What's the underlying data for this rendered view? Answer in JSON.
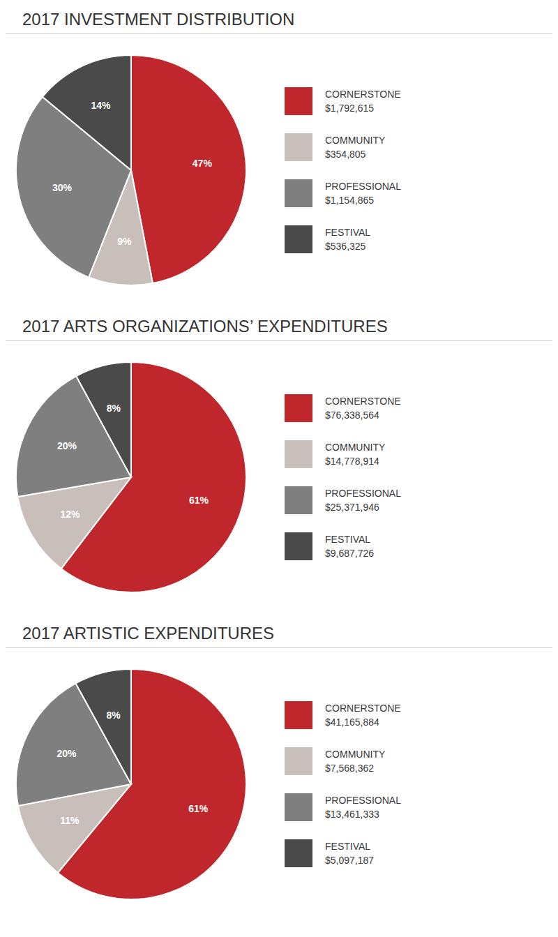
{
  "chart_data": [
    {
      "type": "pie",
      "title": "2017 INVESTMENT DISTRIBUTION",
      "categories": [
        "CORNERSTONE",
        "COMMUNITY",
        "PROFESSIONAL",
        "FESTIVAL"
      ],
      "values": [
        47,
        9,
        30,
        14
      ],
      "value_labels": [
        "47%",
        "9%",
        "30%",
        "14%"
      ],
      "data_labels": true,
      "colors": [
        "#c0272d",
        "#c8bfbb",
        "#7f7f7f",
        "#4a4a4a"
      ],
      "legend_values": [
        "$1,792,615",
        "$354,805",
        "$1,154,865",
        "$536,325"
      ]
    },
    {
      "type": "pie",
      "title": "2017 ARTS ORGANIZATIONS’ EXPENDITURES",
      "categories": [
        "CORNERSTONE",
        "COMMUNITY",
        "PROFESSIONAL",
        "FESTIVAL"
      ],
      "values": [
        61,
        12,
        20,
        8
      ],
      "value_labels": [
        "61%",
        "12%",
        "20%",
        "8%"
      ],
      "data_labels": true,
      "colors": [
        "#c0272d",
        "#c8bfbb",
        "#7f7f7f",
        "#4a4a4a"
      ],
      "legend_values": [
        "$76,338,564",
        "$14,778,914",
        "$25,371,946",
        "$9,687,726"
      ]
    },
    {
      "type": "pie",
      "title": "2017 ARTISTIC EXPENDITURES",
      "categories": [
        "CORNERSTONE",
        "COMMUNITY",
        "PROFESSIONAL",
        "FESTIVAL"
      ],
      "values": [
        61,
        11,
        20,
        8
      ],
      "value_labels": [
        "61%",
        "11%",
        "20%",
        "8%"
      ],
      "data_labels": true,
      "colors": [
        "#c0272d",
        "#c8bfbb",
        "#7f7f7f",
        "#4a4a4a"
      ],
      "legend_values": [
        "$41,165,884",
        "$7,568,362",
        "$13,461,333",
        "$5,097,187"
      ]
    }
  ]
}
